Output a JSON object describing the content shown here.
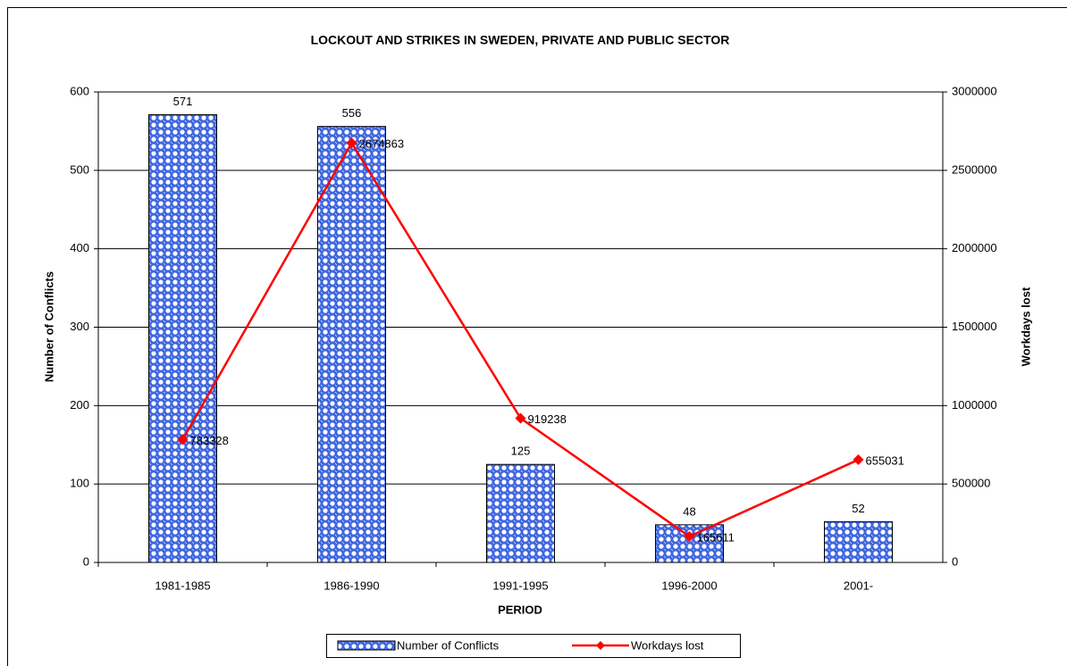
{
  "chart_data": {
    "type": "bar",
    "title": "LOCKOUT AND STRIKES IN SWEDEN, PRIVATE AND PUBLIC SECTOR",
    "x_label": "PERIOD",
    "y_label": "Number of Conflicts",
    "y2_label": "Workdays lost",
    "categories": [
      "1981-1985",
      "1986-1990",
      "1991-1995",
      "1996-2000",
      "2001-"
    ],
    "series": [
      {
        "name": "Number of Conflicts",
        "type": "bar",
        "color": "#3f66e0",
        "values": [
          571,
          556,
          125,
          48,
          52
        ]
      },
      {
        "name": "Workdays lost",
        "type": "line",
        "color": "#ff0000",
        "axis": "y2",
        "values": [
          783328,
          2674863,
          919238,
          165611,
          655031
        ]
      }
    ],
    "ylim": [
      0,
      600
    ],
    "yticks": [
      0,
      100,
      200,
      300,
      400,
      500,
      600
    ],
    "y2lim": [
      0,
      3000000
    ],
    "y2ticks": [
      0,
      500000,
      1000000,
      1500000,
      2000000,
      2500000,
      3000000
    ],
    "grid": true,
    "legend": "bottom"
  }
}
